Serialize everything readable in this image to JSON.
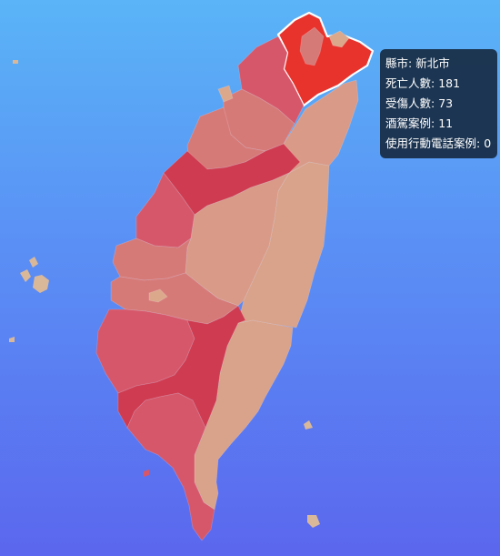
{
  "tooltip": {
    "county_label": "縣市",
    "county_value": "新北市",
    "deaths_label": "死亡人數",
    "deaths_value": "181",
    "injuries_label": "受傷人數",
    "injuries_value": "73",
    "drunk_label": "酒駕案例",
    "drunk_value": "11",
    "phone_label": "使用行動電話案例",
    "phone_value": "0"
  },
  "colors": {
    "background_top": "#5ab4f7",
    "background_bottom": "#5b67ee",
    "highlight": "#e8322c",
    "darkest": "#cf3b50",
    "dark": "#d6576a",
    "mid": "#d67a78",
    "light": "#d99a88",
    "lightest": "#dba88c",
    "islet": "#d9b89a"
  }
}
